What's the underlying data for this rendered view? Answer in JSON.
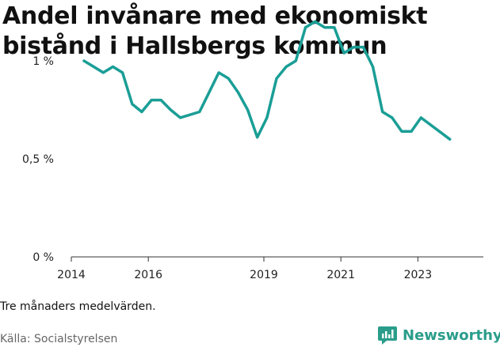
{
  "title": "Andel invånare med ekonomiskt bistånd i Hallsbergs kommun",
  "note": "Tre månaders medelvärden.",
  "source": "Källa: Socialstyrelsen",
  "brand": "Newsworthy",
  "colors": {
    "line": "#1a9e96",
    "brand": "#2a9d8a",
    "axis": "#333333"
  },
  "chart_data": {
    "type": "line",
    "title": "Andel invånare med ekonomiskt bistånd i Hallsbergs kommun",
    "xlabel": "",
    "ylabel": "",
    "xlim": [
      2014,
      2024.7
    ],
    "ylim": [
      0,
      1.3
    ],
    "grid": false,
    "y_ticks": [
      {
        "value": 0,
        "label": "0 %"
      },
      {
        "value": 0.5,
        "label": "0,5 %"
      },
      {
        "value": 1,
        "label": "1 %"
      }
    ],
    "x_ticks": [
      {
        "value": 2014,
        "label": "2014"
      },
      {
        "value": 2016,
        "label": "2016"
      },
      {
        "value": 2019,
        "label": "2019"
      },
      {
        "value": 2021,
        "label": "2021"
      },
      {
        "value": 2023,
        "label": "2023"
      }
    ],
    "series": [
      {
        "x": [
          2014.33,
          2014.58,
          2014.83,
          2015.08,
          2015.33,
          2015.58,
          2015.83,
          2016.08,
          2016.33,
          2016.58,
          2016.83,
          2017.33,
          2017.58,
          2017.83,
          2018.08,
          2018.33,
          2018.58,
          2018.83,
          2019.08,
          2019.33,
          2019.58,
          2019.83,
          2020.08,
          2020.33,
          2020.58,
          2020.83,
          2021.08,
          2021.33,
          2021.58,
          2021.83,
          2022.08,
          2022.33,
          2022.58,
          2022.83,
          2023.08,
          2023.83
        ],
        "values": [
          1.0,
          0.97,
          0.94,
          0.97,
          0.94,
          0.78,
          0.74,
          0.8,
          0.8,
          0.75,
          0.71,
          0.74,
          0.84,
          0.94,
          0.91,
          0.84,
          0.75,
          0.61,
          0.71,
          0.91,
          0.97,
          1.0,
          1.17,
          1.2,
          1.17,
          1.17,
          1.04,
          1.07,
          1.07,
          0.97,
          0.74,
          0.71,
          0.64,
          0.64,
          0.71,
          0.6
        ]
      }
    ]
  }
}
